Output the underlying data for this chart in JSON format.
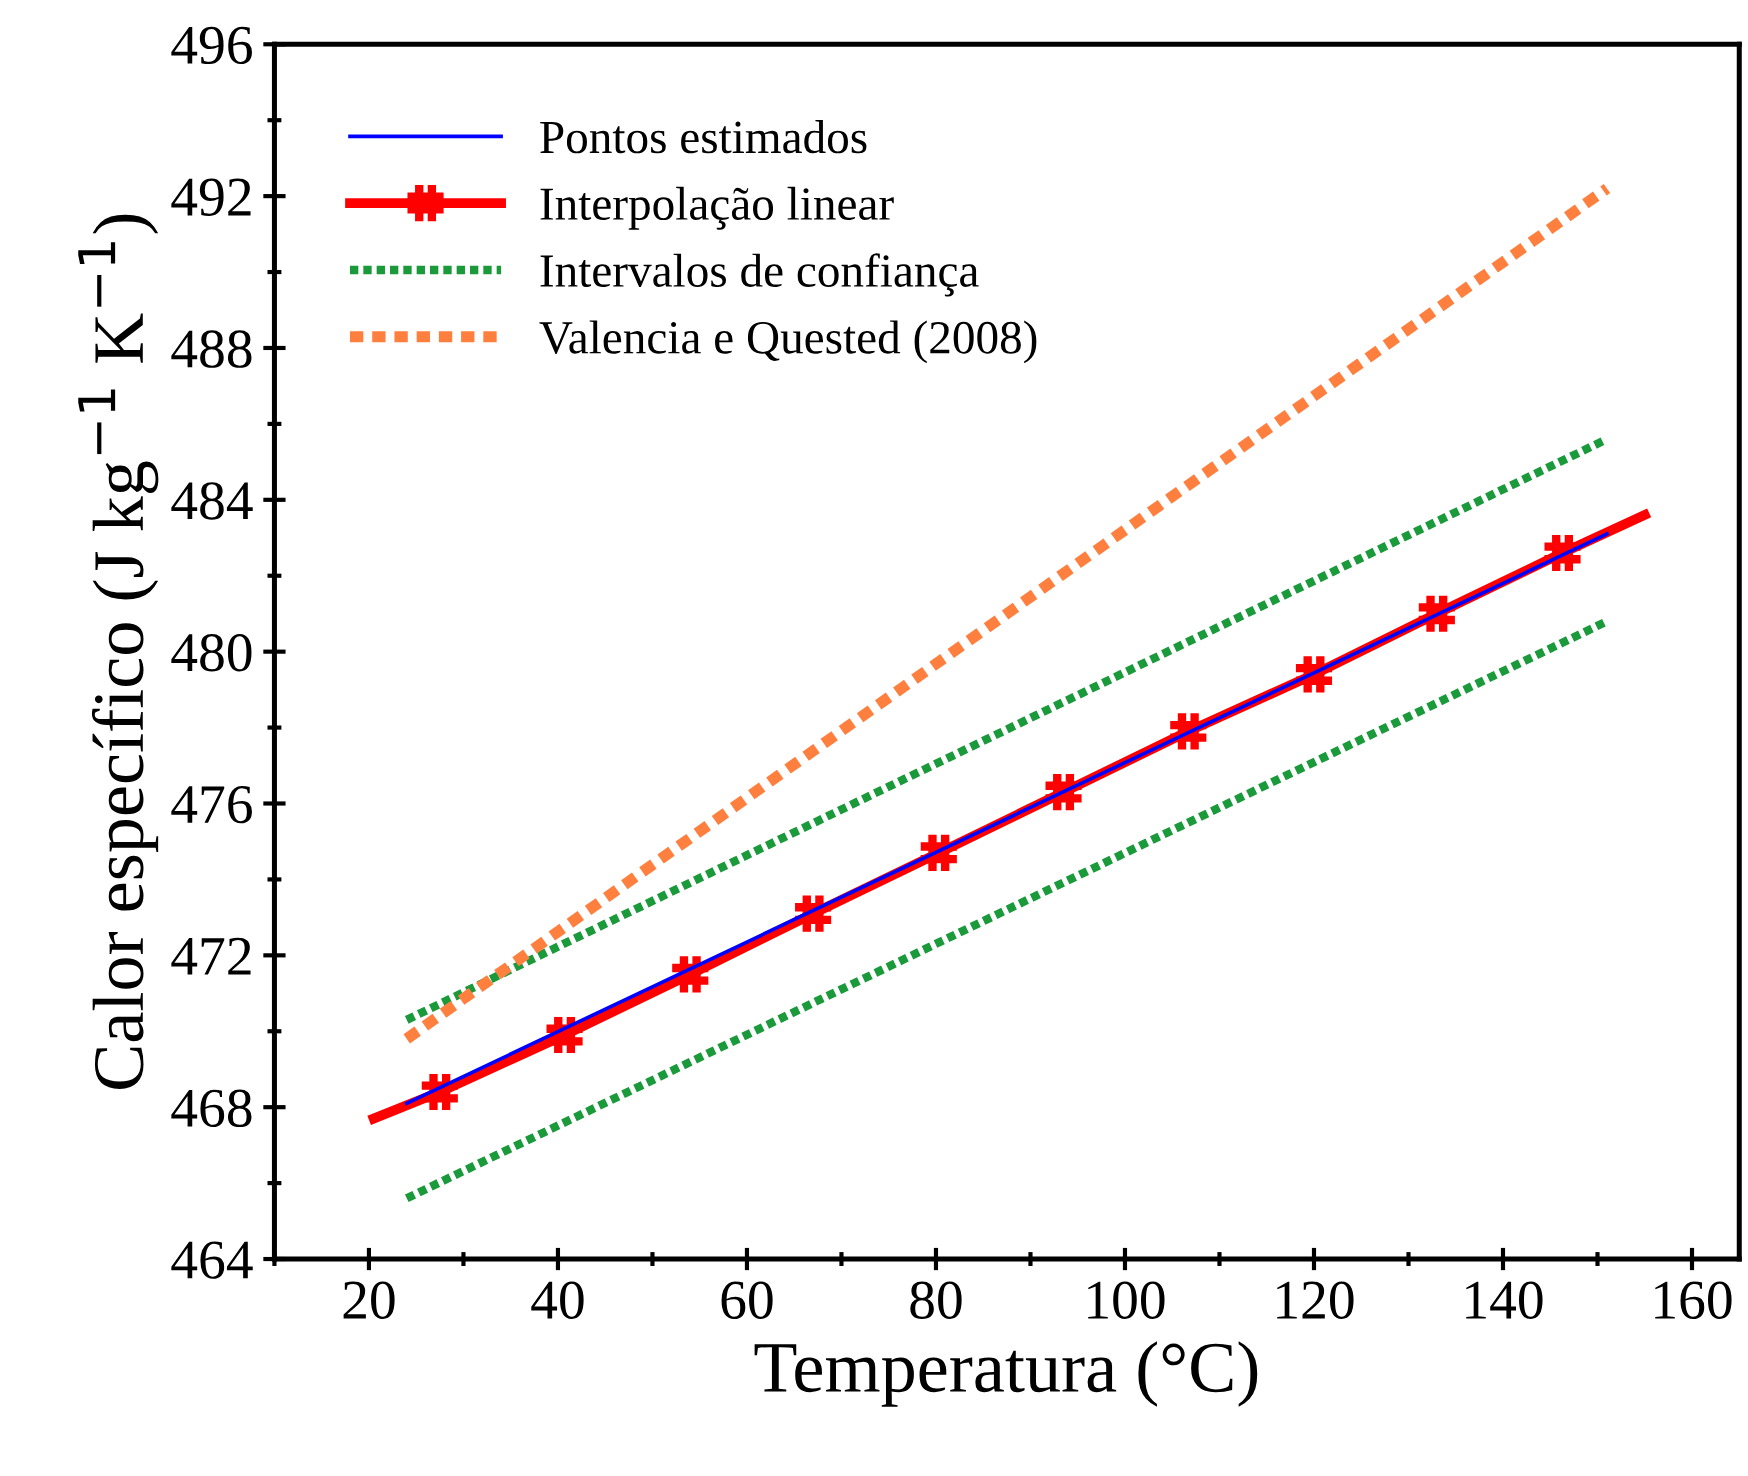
{
  "chart_data": {
    "type": "line",
    "xlabel": "Temperatura (°C)",
    "ylabel": "Calor específico (J kg$^{−1}$ K$^{−1}$)",
    "xlim": [
      10,
      165
    ],
    "xticks": [
      20,
      40,
      60,
      80,
      100,
      120,
      140,
      160
    ],
    "ylim": [
      464,
      496
    ],
    "yticks": [
      464,
      468,
      472,
      476,
      480,
      484,
      488,
      492,
      496
    ],
    "grid": false,
    "legend": "top left",
    "series": [
      {
        "name": "Pontos estimados",
        "color": "#0000ff",
        "line_style": "solid",
        "marker": "none",
        "x": [
          24,
          151
        ],
        "values": [
          468.1,
          483.1
        ]
      },
      {
        "name": "Interpolação linear",
        "color": "#ff0000",
        "line_style": "solid",
        "marker": "cross",
        "x": [
          20.5,
          27.5,
          40.7,
          54,
          67,
          80.3,
          93.5,
          106.7,
          120,
          133,
          146.3,
          155
        ],
        "values": [
          467.7,
          468.4,
          469.9,
          471.5,
          473.1,
          474.7,
          476.3,
          477.9,
          479.4,
          481.0,
          482.6,
          483.6
        ]
      },
      {
        "name": "Intervalos de confiança",
        "color": "#1a9a3a",
        "line_style": "dotted",
        "marker": "none",
        "x": [
          24,
          151
        ],
        "values": [
          470.3,
          485.6
        ]
      },
      {
        "x": [
          24,
          151
        ],
        "color": "#1a9a3a",
        "line_style": "dotted",
        "marker": "none",
        "values": [
          465.6,
          480.8
        ]
      },
      {
        "name": "Valencia e Quested (2008)",
        "color": "#ff7f3f",
        "line_style": "dashed",
        "marker": "none",
        "x": [
          24,
          151
        ],
        "values": [
          469.8,
          492.2
        ]
      }
    ]
  }
}
